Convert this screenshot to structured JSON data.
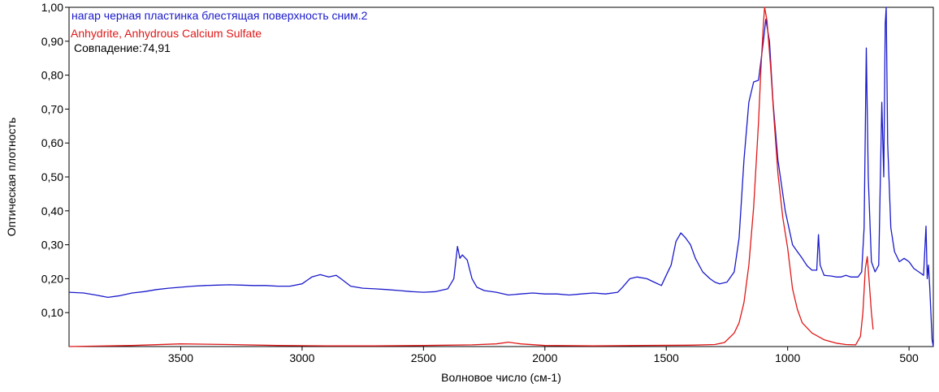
{
  "chart_data": {
    "type": "line",
    "title": "",
    "xlabel": "Волновое число (см-1)",
    "ylabel": "Оптическая плотность",
    "xlim": [
      3960,
      400
    ],
    "ylim": [
      0,
      1.0
    ],
    "x_reversed": true,
    "x_ticks": [
      3500,
      3000,
      2500,
      2000,
      1500,
      1000,
      500
    ],
    "x_tick_labels": [
      "3500",
      "3000",
      "2500",
      "2000",
      "1500",
      "1000",
      "500"
    ],
    "y_ticks": [
      0.1,
      0.2,
      0.3,
      0.4,
      0.5,
      0.6,
      0.7,
      0.8,
      0.9,
      1.0
    ],
    "y_tick_labels": [
      "0,10",
      "0,20",
      "0,30",
      "0,40",
      "0,50",
      "0,60",
      "0,70",
      "0,80",
      "0,90",
      "1,00"
    ],
    "grid": false,
    "legend_placement": "top-left",
    "match_text": "Совпадение:74,91",
    "series": [
      {
        "name": "нагар черная пластинка блестящая поверхность сним.2",
        "color": "#1a1acc",
        "points": [
          [
            3960,
            0.16
          ],
          [
            3900,
            0.158
          ],
          [
            3850,
            0.152
          ],
          [
            3800,
            0.145
          ],
          [
            3750,
            0.15
          ],
          [
            3700,
            0.158
          ],
          [
            3650,
            0.162
          ],
          [
            3600,
            0.168
          ],
          [
            3550,
            0.172
          ],
          [
            3500,
            0.175
          ],
          [
            3450,
            0.178
          ],
          [
            3400,
            0.18
          ],
          [
            3350,
            0.181
          ],
          [
            3300,
            0.182
          ],
          [
            3250,
            0.181
          ],
          [
            3200,
            0.18
          ],
          [
            3150,
            0.18
          ],
          [
            3100,
            0.178
          ],
          [
            3050,
            0.178
          ],
          [
            3000,
            0.185
          ],
          [
            2960,
            0.205
          ],
          [
            2925,
            0.212
          ],
          [
            2890,
            0.205
          ],
          [
            2860,
            0.21
          ],
          [
            2840,
            0.2
          ],
          [
            2800,
            0.178
          ],
          [
            2750,
            0.172
          ],
          [
            2700,
            0.17
          ],
          [
            2650,
            0.168
          ],
          [
            2600,
            0.165
          ],
          [
            2550,
            0.162
          ],
          [
            2500,
            0.16
          ],
          [
            2450,
            0.162
          ],
          [
            2400,
            0.17
          ],
          [
            2375,
            0.2
          ],
          [
            2360,
            0.295
          ],
          [
            2350,
            0.26
          ],
          [
            2340,
            0.27
          ],
          [
            2320,
            0.255
          ],
          [
            2300,
            0.2
          ],
          [
            2280,
            0.175
          ],
          [
            2250,
            0.165
          ],
          [
            2200,
            0.16
          ],
          [
            2150,
            0.152
          ],
          [
            2100,
            0.155
          ],
          [
            2050,
            0.158
          ],
          [
            2000,
            0.155
          ],
          [
            1950,
            0.155
          ],
          [
            1900,
            0.152
          ],
          [
            1850,
            0.155
          ],
          [
            1800,
            0.158
          ],
          [
            1750,
            0.155
          ],
          [
            1700,
            0.16
          ],
          [
            1680,
            0.175
          ],
          [
            1650,
            0.2
          ],
          [
            1620,
            0.205
          ],
          [
            1580,
            0.2
          ],
          [
            1550,
            0.19
          ],
          [
            1520,
            0.18
          ],
          [
            1500,
            0.21
          ],
          [
            1480,
            0.24
          ],
          [
            1460,
            0.31
          ],
          [
            1440,
            0.335
          ],
          [
            1420,
            0.32
          ],
          [
            1400,
            0.3
          ],
          [
            1380,
            0.26
          ],
          [
            1350,
            0.22
          ],
          [
            1320,
            0.2
          ],
          [
            1300,
            0.19
          ],
          [
            1280,
            0.185
          ],
          [
            1250,
            0.19
          ],
          [
            1220,
            0.22
          ],
          [
            1200,
            0.32
          ],
          [
            1180,
            0.55
          ],
          [
            1160,
            0.72
          ],
          [
            1140,
            0.78
          ],
          [
            1120,
            0.785
          ],
          [
            1100,
            0.9
          ],
          [
            1090,
            0.965
          ],
          [
            1075,
            0.9
          ],
          [
            1060,
            0.72
          ],
          [
            1040,
            0.55
          ],
          [
            1010,
            0.4
          ],
          [
            980,
            0.3
          ],
          [
            960,
            0.28
          ],
          [
            940,
            0.26
          ],
          [
            920,
            0.238
          ],
          [
            900,
            0.225
          ],
          [
            880,
            0.225
          ],
          [
            873,
            0.33
          ],
          [
            866,
            0.24
          ],
          [
            850,
            0.21
          ],
          [
            820,
            0.208
          ],
          [
            800,
            0.205
          ],
          [
            780,
            0.205
          ],
          [
            760,
            0.21
          ],
          [
            740,
            0.205
          ],
          [
            710,
            0.205
          ],
          [
            695,
            0.22
          ],
          [
            685,
            0.35
          ],
          [
            676,
            0.88
          ],
          [
            668,
            0.5
          ],
          [
            655,
            0.25
          ],
          [
            640,
            0.22
          ],
          [
            625,
            0.24
          ],
          [
            612,
            0.72
          ],
          [
            604,
            0.5
          ],
          [
            598,
            0.95
          ],
          [
            594,
            1.02
          ],
          [
            588,
            0.6
          ],
          [
            575,
            0.35
          ],
          [
            560,
            0.28
          ],
          [
            540,
            0.25
          ],
          [
            520,
            0.26
          ],
          [
            500,
            0.25
          ],
          [
            480,
            0.23
          ],
          [
            460,
            0.22
          ],
          [
            440,
            0.21
          ],
          [
            430,
            0.355
          ],
          [
            425,
            0.2
          ],
          [
            420,
            0.24
          ],
          [
            415,
            0.18
          ],
          [
            405,
            0.02
          ],
          [
            400,
            0.0
          ]
        ]
      },
      {
        "name": "Anhydrite, Anhydrous Calcium Sulfate",
        "color": "#e01818",
        "points": [
          [
            3960,
            0.0
          ],
          [
            3700,
            0.003
          ],
          [
            3500,
            0.008
          ],
          [
            3300,
            0.006
          ],
          [
            3100,
            0.003
          ],
          [
            2900,
            0.002
          ],
          [
            2700,
            0.002
          ],
          [
            2500,
            0.003
          ],
          [
            2300,
            0.005
          ],
          [
            2200,
            0.008
          ],
          [
            2150,
            0.013
          ],
          [
            2100,
            0.008
          ],
          [
            2000,
            0.003
          ],
          [
            1800,
            0.002
          ],
          [
            1600,
            0.003
          ],
          [
            1400,
            0.004
          ],
          [
            1300,
            0.006
          ],
          [
            1260,
            0.012
          ],
          [
            1220,
            0.04
          ],
          [
            1200,
            0.07
          ],
          [
            1180,
            0.13
          ],
          [
            1160,
            0.24
          ],
          [
            1140,
            0.41
          ],
          [
            1120,
            0.66
          ],
          [
            1110,
            0.82
          ],
          [
            1100,
            0.95
          ],
          [
            1095,
            1.0
          ],
          [
            1085,
            0.96
          ],
          [
            1070,
            0.82
          ],
          [
            1055,
            0.66
          ],
          [
            1040,
            0.51
          ],
          [
            1020,
            0.38
          ],
          [
            1000,
            0.29
          ],
          [
            980,
            0.17
          ],
          [
            960,
            0.11
          ],
          [
            940,
            0.07
          ],
          [
            900,
            0.04
          ],
          [
            850,
            0.02
          ],
          [
            800,
            0.01
          ],
          [
            760,
            0.006
          ],
          [
            720,
            0.005
          ],
          [
            700,
            0.03
          ],
          [
            690,
            0.1
          ],
          [
            680,
            0.23
          ],
          [
            672,
            0.265
          ],
          [
            665,
            0.2
          ],
          [
            655,
            0.1
          ],
          [
            648,
            0.05
          ]
        ]
      }
    ]
  }
}
